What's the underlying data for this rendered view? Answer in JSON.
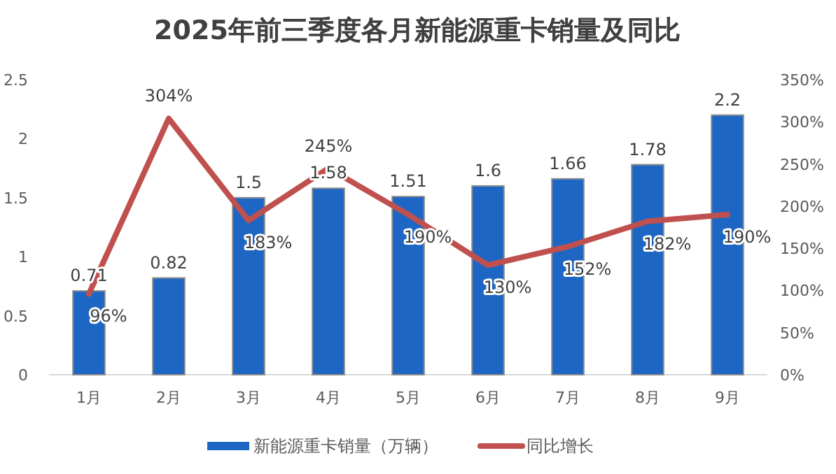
{
  "chart_data": {
    "type": "bar",
    "title": "2025年前三季度各月新能源重卡销量及同比",
    "categories": [
      "1月",
      "2月",
      "3月",
      "4月",
      "5月",
      "6月",
      "7月",
      "8月",
      "9月"
    ],
    "series": [
      {
        "name": "新能源重卡销量（万辆）",
        "color": "#1e66c4",
        "values": [
          0.71,
          0.82,
          1.5,
          1.58,
          1.51,
          1.6,
          1.66,
          1.78,
          2.2
        ],
        "value_labels": [
          "0.71",
          "0.82",
          "1.5",
          "1.58",
          "1.51",
          "1.6",
          "1.66",
          "1.78",
          "2.2"
        ]
      },
      {
        "name": "同比增长",
        "type": "line",
        "axis": "y2",
        "color": "#c0504d",
        "values": [
          96,
          304,
          183,
          245,
          190,
          130,
          152,
          182,
          190
        ],
        "value_labels": [
          "96%",
          "304%",
          "183%",
          "245%",
          "190%",
          "130%",
          "152%",
          "182%",
          "190%"
        ]
      }
    ],
    "ylim": [
      0,
      2.5
    ],
    "yticks": [
      0,
      0.5,
      1,
      1.5,
      2,
      2.5
    ],
    "y2lim": [
      0,
      350
    ],
    "y2ticks": [
      {
        "value": 0,
        "label": "0%"
      },
      {
        "value": 50,
        "label": "50%"
      },
      {
        "value": 100,
        "label": "100%"
      },
      {
        "value": 150,
        "label": "150%"
      },
      {
        "value": 200,
        "label": "200%"
      },
      {
        "value": 250,
        "label": "250%"
      },
      {
        "value": 300,
        "label": "300%"
      },
      {
        "value": 350,
        "label": "350%"
      }
    ],
    "grid": false,
    "legend": "bottom"
  }
}
